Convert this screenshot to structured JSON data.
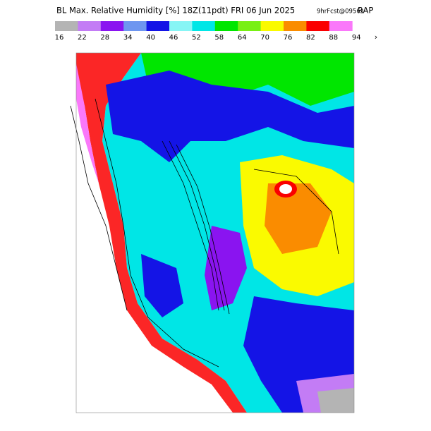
{
  "header": {
    "title": "BL Max. Relative Humidity [%] 18Z(11pdt) FRI 06 Jun 2025",
    "forecast": "9hrFcst@0956z",
    "model": "RAP"
  },
  "legend": {
    "labels": [
      "16",
      "22",
      "28",
      "34",
      "40",
      "46",
      "52",
      "58",
      "64",
      "70",
      "76",
      "82",
      "88",
      "94"
    ],
    "colors": [
      "#b4b4b4",
      "#c37cf5",
      "#8a14f0",
      "#6e96f0",
      "#1414e6",
      "#87f5f5",
      "#00e6e6",
      "#00e600",
      "#78f014",
      "#fafa00",
      "#fa8c00",
      "#fa0000",
      "#fa78fa"
    ],
    "more": "›"
  }
}
